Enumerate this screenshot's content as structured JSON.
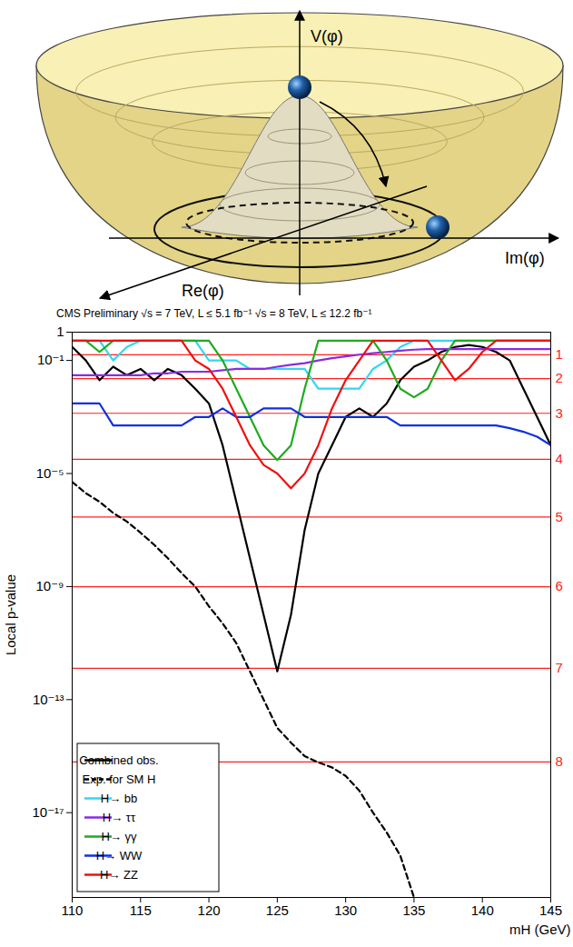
{
  "illustration": {
    "labels": {
      "vertical": "V(φ)",
      "horizontal": "Im(φ)",
      "depth": "Re(φ)"
    }
  },
  "chart_data": {
    "type": "line",
    "title": "CMS Preliminary  √s = 7 TeV, L ≤ 5.1 fb⁻¹  √s = 8 TeV, L ≤ 12.2 fb⁻¹",
    "x_label": "mH (GeV)",
    "y_label": "Local p-value",
    "log": "y",
    "legend": "bottom-left",
    "x": [
      110,
      111,
      112,
      113,
      114,
      115,
      116,
      117,
      118,
      119,
      120,
      121,
      122,
      123,
      124,
      125,
      126,
      127,
      128,
      129,
      130,
      131,
      132,
      133,
      134,
      135,
      136,
      137,
      138,
      139,
      140,
      141,
      142,
      143,
      144,
      145
    ],
    "xlim": [
      110,
      145
    ],
    "xticks": [
      110,
      115,
      120,
      125,
      130,
      135,
      140,
      145
    ],
    "ylim": [
      1e-20,
      1
    ],
    "yticks": [
      1,
      {
        "value": 0.1,
        "label": "10⁻¹"
      },
      {
        "value": 1e-05,
        "label": "10⁻⁵"
      },
      {
        "value": 1e-09,
        "label": "10⁻⁹"
      },
      {
        "value": 1e-13,
        "label": "10⁻¹³"
      },
      {
        "value": 1e-17,
        "label": "10⁻¹⁷"
      }
    ],
    "sigma_lines": {
      "color": "#ff2020",
      "lines": [
        {
          "value": 0.1587,
          "label": "1"
        },
        {
          "value": 0.02275,
          "label": "2"
        },
        {
          "value": 0.00135,
          "label": "3"
        },
        {
          "value": 3.167e-05,
          "label": "4"
        },
        {
          "value": 2.867e-07,
          "label": "5"
        },
        {
          "value": 9.866e-10,
          "label": "6"
        },
        {
          "value": 1.28e-12,
          "label": "7"
        },
        {
          "value": 6.22e-16,
          "label": "8"
        }
      ]
    },
    "series": [
      {
        "name": "Combined obs.",
        "color": "#000000",
        "line_style": "solid",
        "values": [
          0.3,
          0.1,
          0.02,
          0.06,
          0.03,
          0.05,
          0.02,
          0.05,
          0.03,
          0.01,
          0.003,
          0.0001,
          1e-06,
          1e-08,
          1e-10,
          1e-12,
          1e-10,
          1e-07,
          1e-05,
          0.0001,
          0.001,
          0.002,
          0.001,
          0.003,
          0.02,
          0.06,
          0.1,
          0.2,
          0.3,
          0.35,
          0.3,
          0.2,
          0.1,
          0.01,
          0.001,
          0.0001
        ]
      },
      {
        "name": "Exp. for SM H",
        "color": "#000000",
        "line_style": "dashed",
        "values": [
          5e-06,
          2e-06,
          1e-06,
          4e-07,
          2e-07,
          8e-08,
          3e-08,
          1e-08,
          3e-09,
          1e-09,
          2e-10,
          5e-11,
          1e-11,
          1e-12,
          1e-13,
          1e-14,
          3e-15,
          1e-15,
          6e-16,
          4e-16,
          2e-16,
          6e-17,
          1e-17,
          2e-18,
          3e-19,
          1e-20,
          null,
          null,
          null,
          null,
          null,
          null,
          null,
          null,
          null,
          null
        ]
      },
      {
        "name": "H→ bb",
        "color": "#33d6f0",
        "line_style": "solid",
        "values": [
          0.5,
          0.5,
          0.5,
          0.1,
          0.3,
          0.5,
          0.5,
          0.5,
          0.5,
          0.5,
          0.1,
          0.1,
          0.1,
          0.05,
          0.05,
          0.05,
          0.05,
          0.05,
          0.01,
          0.01,
          0.01,
          0.01,
          0.05,
          0.1,
          0.3,
          0.5,
          0.5,
          0.5,
          0.5,
          0.5,
          0.5,
          0.5,
          0.5,
          0.5,
          0.5,
          0.5
        ]
      },
      {
        "name": "H→ ττ",
        "color": "#8a2be2",
        "line_style": "solid",
        "values": [
          0.03,
          0.03,
          0.03,
          0.03,
          0.03,
          0.03,
          0.035,
          0.035,
          0.04,
          0.04,
          0.04,
          0.045,
          0.05,
          0.05,
          0.05,
          0.06,
          0.07,
          0.08,
          0.1,
          0.12,
          0.14,
          0.16,
          0.18,
          0.2,
          0.22,
          0.24,
          0.25,
          0.25,
          0.25,
          0.25,
          0.25,
          0.25,
          0.25,
          0.25,
          0.25,
          0.25
        ]
      },
      {
        "name": "H→ γγ",
        "color": "#1faa1f",
        "line_style": "solid",
        "values": [
          0.5,
          0.5,
          0.2,
          0.5,
          0.5,
          0.5,
          0.5,
          0.5,
          0.5,
          0.5,
          0.5,
          0.1,
          0.01,
          0.001,
          0.0001,
          3e-05,
          0.0001,
          0.01,
          0.5,
          0.5,
          0.5,
          0.5,
          0.5,
          0.1,
          0.01,
          0.005,
          0.01,
          0.1,
          0.5,
          0.5,
          0.5,
          0.5,
          0.5,
          0.5,
          0.5,
          0.5
        ]
      },
      {
        "name": "H→ WW",
        "color": "#1030e0",
        "line_style": "solid",
        "values": [
          0.003,
          0.003,
          0.003,
          0.0005,
          0.0005,
          0.0005,
          0.0005,
          0.0005,
          0.0005,
          0.001,
          0.001,
          0.002,
          0.001,
          0.001,
          0.002,
          0.002,
          0.002,
          0.001,
          0.001,
          0.001,
          0.001,
          0.001,
          0.001,
          0.001,
          0.0005,
          0.0005,
          0.0005,
          0.0005,
          0.0005,
          0.0005,
          0.0005,
          0.0005,
          0.0004,
          0.0003,
          0.0002,
          0.0001
        ]
      },
      {
        "name": "H→ ZZ",
        "color": "#f01010",
        "line_style": "solid",
        "values": [
          0.5,
          0.5,
          0.5,
          0.5,
          0.5,
          0.5,
          0.5,
          0.5,
          0.5,
          0.1,
          0.05,
          0.01,
          0.001,
          0.0001,
          2e-05,
          1e-05,
          3e-06,
          1e-05,
          0.0001,
          0.002,
          0.02,
          0.1,
          0.5,
          0.5,
          0.5,
          0.5,
          0.5,
          0.1,
          0.02,
          0.05,
          0.2,
          0.5,
          0.5,
          0.5,
          0.5,
          0.5
        ]
      }
    ]
  }
}
